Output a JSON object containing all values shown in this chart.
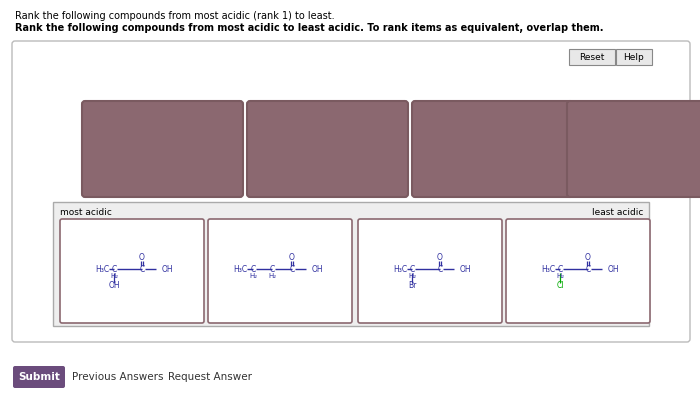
{
  "title_line1": "Rank the following compounds from most acidic (rank 1) to least.",
  "title_line2": "Rank the following compounds from most acidic to least acidic. To rank items as equivalent, overlap them.",
  "bg_color": "#ffffff",
  "outer_box_edge": "#bbbbbb",
  "outer_box_fill": "#ffffff",
  "drag_box_fill": "#8B6870",
  "drag_box_edge": "#7a5a60",
  "lower_panel_bg": "#eeeeee",
  "lower_panel_edge": "#aaaaaa",
  "compound_box_edge": "#8B6870",
  "compound_box_bg": "#ffffff",
  "most_acidic_label": "most acidic",
  "least_acidic_label": "least acidic",
  "submit_text": "Submit",
  "submit_bg": "#6B4C7C",
  "submit_fg": "#ffffff",
  "prev_answers": "Previous Answers",
  "req_answer": "Request Answer",
  "reset_text": "Reset",
  "help_text": "Help",
  "cc": "#3030a0",
  "oc": "#3030a0",
  "ohc": "#3030a0",
  "brc": "#3030a0",
  "clc": "#00aa00"
}
